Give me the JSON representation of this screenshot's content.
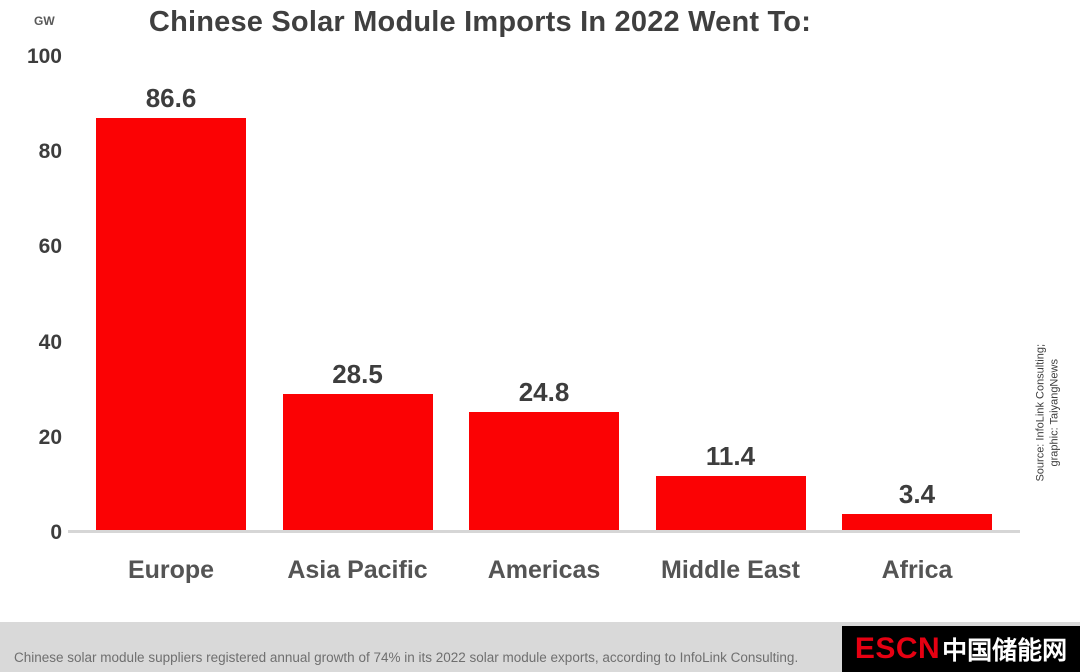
{
  "title": "Chinese Solar Module Imports In 2022 Went To:",
  "y_axis": {
    "unit": "GW",
    "ticks": [
      "100",
      "80",
      "60",
      "40",
      "20",
      "0"
    ]
  },
  "chart_data": {
    "type": "bar",
    "categories": [
      "Europe",
      "Asia Pacific",
      "Americas",
      "Middle East",
      "Africa"
    ],
    "values": [
      86.6,
      28.5,
      24.8,
      11.4,
      3.4
    ],
    "value_labels": [
      "86.6",
      "28.5",
      "24.8",
      "11.4",
      "3.4"
    ],
    "title": "Chinese Solar Module Imports In 2022 Went To:",
    "xlabel": "",
    "ylabel": "GW",
    "ylim": [
      0,
      100
    ],
    "grid": false,
    "legend": false,
    "bar_color": "#fb0204"
  },
  "source_note": {
    "line1": "Source: InfoLink Consulting;",
    "line2": "graphic: TaiyangNews"
  },
  "footer": {
    "caption": "Chinese solar module suppliers registered annual growth of 74% in its 2022 solar module exports, according to InfoLink Consulting.",
    "logo_escn": "ESCN",
    "logo_cn": "中国储能网"
  },
  "colors": {
    "bar": "#fb0204",
    "logo_red": "#e60012",
    "footer_bg": "#d9d9d9"
  }
}
